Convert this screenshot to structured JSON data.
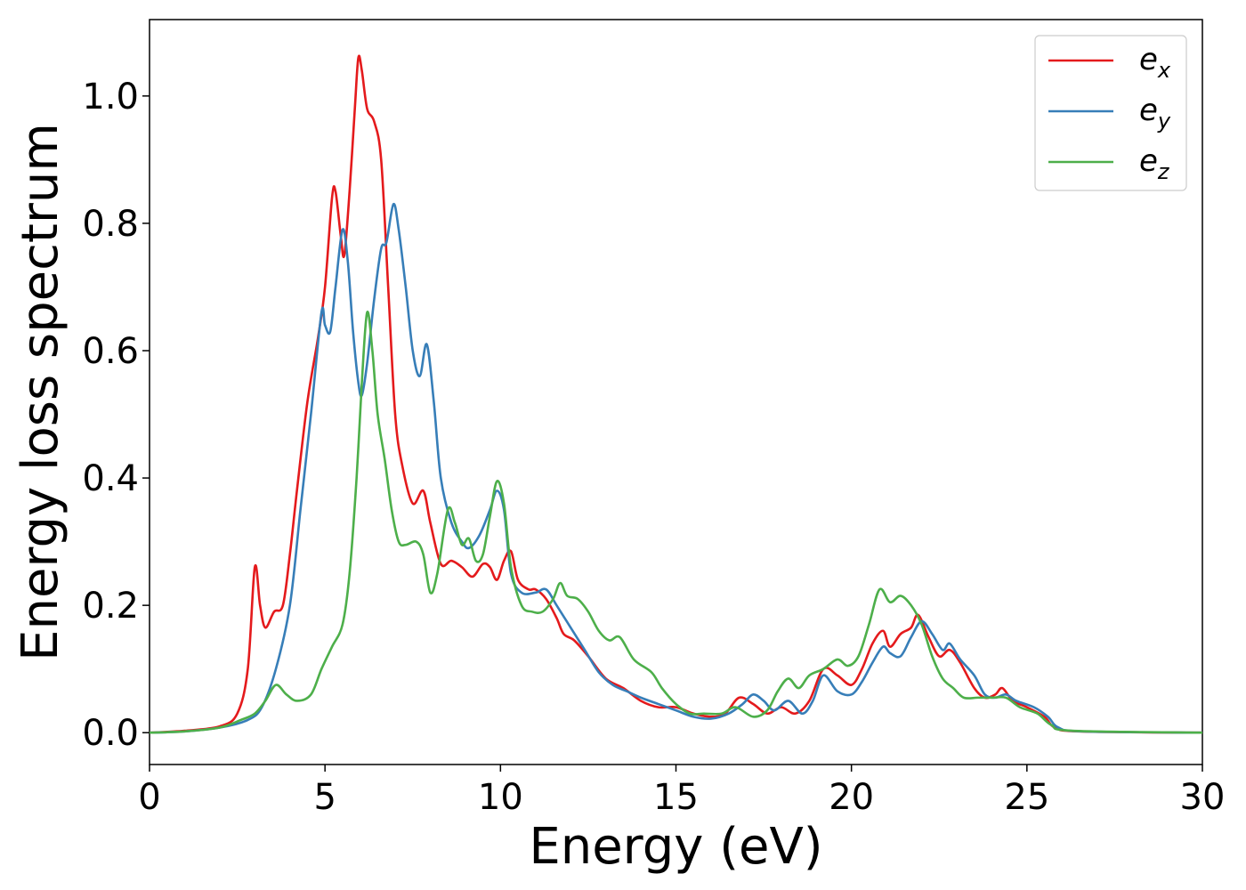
{
  "chart_data": {
    "type": "line",
    "xlabel": "Energy (eV)",
    "ylabel": "Energy loss spectrum",
    "xlim": [
      0,
      30
    ],
    "ylim": [
      -0.05,
      1.12
    ],
    "xticks": [
      0,
      5,
      10,
      15,
      20,
      25,
      30
    ],
    "xtick_labels": [
      "0",
      "5",
      "10",
      "15",
      "20",
      "25",
      "30"
    ],
    "yticks": [
      0.0,
      0.2,
      0.4,
      0.6,
      0.8,
      1.0
    ],
    "ytick_labels": [
      "0.0",
      "0.2",
      "0.4",
      "0.6",
      "0.8",
      "1.0"
    ],
    "grid": false,
    "legend_position": "top-right",
    "series": [
      {
        "name": "e_x",
        "label_base": "e",
        "label_sub": "x",
        "color": "#e41a1c",
        "points": [
          [
            0,
            0.0
          ],
          [
            1,
            0.003
          ],
          [
            2,
            0.01
          ],
          [
            2.5,
            0.03
          ],
          [
            2.8,
            0.1
          ],
          [
            3.0,
            0.26
          ],
          [
            3.15,
            0.2
          ],
          [
            3.3,
            0.165
          ],
          [
            3.55,
            0.19
          ],
          [
            3.8,
            0.2
          ],
          [
            4.0,
            0.28
          ],
          [
            4.2,
            0.38
          ],
          [
            4.5,
            0.52
          ],
          [
            4.8,
            0.62
          ],
          [
            5.0,
            0.7
          ],
          [
            5.2,
            0.84
          ],
          [
            5.3,
            0.85
          ],
          [
            5.45,
            0.78
          ],
          [
            5.55,
            0.75
          ],
          [
            5.7,
            0.85
          ],
          [
            5.85,
            0.98
          ],
          [
            5.95,
            1.06
          ],
          [
            6.05,
            1.04
          ],
          [
            6.2,
            0.98
          ],
          [
            6.4,
            0.96
          ],
          [
            6.6,
            0.9
          ],
          [
            6.8,
            0.7
          ],
          [
            7.0,
            0.5
          ],
          [
            7.2,
            0.42
          ],
          [
            7.5,
            0.36
          ],
          [
            7.8,
            0.38
          ],
          [
            8.0,
            0.33
          ],
          [
            8.3,
            0.265
          ],
          [
            8.6,
            0.27
          ],
          [
            8.9,
            0.26
          ],
          [
            9.2,
            0.245
          ],
          [
            9.5,
            0.265
          ],
          [
            9.7,
            0.26
          ],
          [
            9.9,
            0.24
          ],
          [
            10.1,
            0.27
          ],
          [
            10.3,
            0.285
          ],
          [
            10.5,
            0.24
          ],
          [
            10.8,
            0.225
          ],
          [
            11.0,
            0.225
          ],
          [
            11.3,
            0.21
          ],
          [
            11.6,
            0.18
          ],
          [
            11.8,
            0.155
          ],
          [
            12.1,
            0.145
          ],
          [
            12.5,
            0.12
          ],
          [
            13.0,
            0.085
          ],
          [
            13.5,
            0.07
          ],
          [
            14.0,
            0.05
          ],
          [
            14.5,
            0.04
          ],
          [
            15.0,
            0.04
          ],
          [
            15.5,
            0.03
          ],
          [
            16.0,
            0.025
          ],
          [
            16.4,
            0.03
          ],
          [
            16.8,
            0.055
          ],
          [
            17.2,
            0.045
          ],
          [
            17.6,
            0.03
          ],
          [
            18.0,
            0.04
          ],
          [
            18.4,
            0.03
          ],
          [
            18.8,
            0.05
          ],
          [
            19.2,
            0.1
          ],
          [
            19.6,
            0.09
          ],
          [
            20.0,
            0.075
          ],
          [
            20.3,
            0.1
          ],
          [
            20.6,
            0.14
          ],
          [
            20.9,
            0.16
          ],
          [
            21.1,
            0.135
          ],
          [
            21.4,
            0.155
          ],
          [
            21.7,
            0.165
          ],
          [
            21.9,
            0.185
          ],
          [
            22.2,
            0.15
          ],
          [
            22.5,
            0.12
          ],
          [
            22.8,
            0.13
          ],
          [
            23.1,
            0.11
          ],
          [
            23.5,
            0.07
          ],
          [
            23.8,
            0.055
          ],
          [
            24.1,
            0.06
          ],
          [
            24.3,
            0.07
          ],
          [
            24.6,
            0.05
          ],
          [
            25.0,
            0.04
          ],
          [
            25.5,
            0.025
          ],
          [
            25.8,
            0.008
          ],
          [
            26.5,
            0.002
          ],
          [
            30,
            0.0
          ]
        ]
      },
      {
        "name": "e_y",
        "label_base": "e",
        "label_sub": "y",
        "color": "#377eb8",
        "points": [
          [
            0,
            0.0
          ],
          [
            1,
            0.002
          ],
          [
            2,
            0.008
          ],
          [
            2.8,
            0.02
          ],
          [
            3.2,
            0.04
          ],
          [
            3.6,
            0.1
          ],
          [
            4.0,
            0.2
          ],
          [
            4.3,
            0.35
          ],
          [
            4.6,
            0.5
          ],
          [
            4.9,
            0.66
          ],
          [
            5.0,
            0.64
          ],
          [
            5.15,
            0.63
          ],
          [
            5.3,
            0.7
          ],
          [
            5.5,
            0.79
          ],
          [
            5.65,
            0.74
          ],
          [
            5.8,
            0.63
          ],
          [
            5.95,
            0.55
          ],
          [
            6.05,
            0.53
          ],
          [
            6.2,
            0.58
          ],
          [
            6.4,
            0.68
          ],
          [
            6.6,
            0.76
          ],
          [
            6.75,
            0.77
          ],
          [
            6.95,
            0.83
          ],
          [
            7.1,
            0.79
          ],
          [
            7.3,
            0.7
          ],
          [
            7.5,
            0.6
          ],
          [
            7.7,
            0.56
          ],
          [
            7.9,
            0.61
          ],
          [
            8.1,
            0.52
          ],
          [
            8.3,
            0.4
          ],
          [
            8.6,
            0.33
          ],
          [
            8.9,
            0.3
          ],
          [
            9.1,
            0.29
          ],
          [
            9.4,
            0.31
          ],
          [
            9.7,
            0.35
          ],
          [
            9.9,
            0.38
          ],
          [
            10.1,
            0.35
          ],
          [
            10.3,
            0.25
          ],
          [
            10.6,
            0.22
          ],
          [
            11.0,
            0.22
          ],
          [
            11.3,
            0.225
          ],
          [
            11.6,
            0.2
          ],
          [
            12.0,
            0.165
          ],
          [
            12.4,
            0.13
          ],
          [
            12.8,
            0.095
          ],
          [
            13.2,
            0.075
          ],
          [
            13.6,
            0.065
          ],
          [
            14.0,
            0.055
          ],
          [
            14.5,
            0.045
          ],
          [
            15.0,
            0.035
          ],
          [
            15.5,
            0.025
          ],
          [
            16.0,
            0.022
          ],
          [
            16.5,
            0.03
          ],
          [
            16.9,
            0.045
          ],
          [
            17.2,
            0.06
          ],
          [
            17.5,
            0.05
          ],
          [
            17.8,
            0.035
          ],
          [
            18.2,
            0.05
          ],
          [
            18.6,
            0.03
          ],
          [
            18.9,
            0.05
          ],
          [
            19.2,
            0.09
          ],
          [
            19.6,
            0.065
          ],
          [
            20.0,
            0.06
          ],
          [
            20.3,
            0.08
          ],
          [
            20.6,
            0.11
          ],
          [
            20.9,
            0.135
          ],
          [
            21.1,
            0.125
          ],
          [
            21.4,
            0.12
          ],
          [
            21.7,
            0.15
          ],
          [
            22.0,
            0.175
          ],
          [
            22.3,
            0.155
          ],
          [
            22.6,
            0.13
          ],
          [
            22.8,
            0.14
          ],
          [
            23.1,
            0.115
          ],
          [
            23.5,
            0.09
          ],
          [
            23.8,
            0.06
          ],
          [
            24.1,
            0.055
          ],
          [
            24.4,
            0.06
          ],
          [
            24.7,
            0.05
          ],
          [
            25.2,
            0.04
          ],
          [
            25.6,
            0.025
          ],
          [
            25.9,
            0.008
          ],
          [
            26.6,
            0.002
          ],
          [
            30,
            0.0
          ]
        ]
      },
      {
        "name": "e_z",
        "label_base": "e",
        "label_sub": "z",
        "color": "#4daf4a",
        "points": [
          [
            0,
            0.0
          ],
          [
            1,
            0.002
          ],
          [
            2,
            0.008
          ],
          [
            2.6,
            0.02
          ],
          [
            3.0,
            0.03
          ],
          [
            3.3,
            0.05
          ],
          [
            3.6,
            0.075
          ],
          [
            3.9,
            0.06
          ],
          [
            4.2,
            0.05
          ],
          [
            4.6,
            0.06
          ],
          [
            4.9,
            0.1
          ],
          [
            5.2,
            0.135
          ],
          [
            5.5,
            0.17
          ],
          [
            5.7,
            0.25
          ],
          [
            5.9,
            0.4
          ],
          [
            6.05,
            0.55
          ],
          [
            6.2,
            0.66
          ],
          [
            6.35,
            0.6
          ],
          [
            6.5,
            0.5
          ],
          [
            6.7,
            0.43
          ],
          [
            6.9,
            0.35
          ],
          [
            7.1,
            0.3
          ],
          [
            7.3,
            0.295
          ],
          [
            7.6,
            0.3
          ],
          [
            7.8,
            0.28
          ],
          [
            8.0,
            0.22
          ],
          [
            8.2,
            0.25
          ],
          [
            8.5,
            0.35
          ],
          [
            8.7,
            0.33
          ],
          [
            8.9,
            0.295
          ],
          [
            9.1,
            0.305
          ],
          [
            9.3,
            0.27
          ],
          [
            9.5,
            0.28
          ],
          [
            9.7,
            0.34
          ],
          [
            9.9,
            0.395
          ],
          [
            10.1,
            0.36
          ],
          [
            10.3,
            0.26
          ],
          [
            10.6,
            0.2
          ],
          [
            10.9,
            0.19
          ],
          [
            11.2,
            0.19
          ],
          [
            11.5,
            0.21
          ],
          [
            11.7,
            0.235
          ],
          [
            11.9,
            0.215
          ],
          [
            12.2,
            0.21
          ],
          [
            12.5,
            0.19
          ],
          [
            12.8,
            0.16
          ],
          [
            13.1,
            0.145
          ],
          [
            13.4,
            0.15
          ],
          [
            13.8,
            0.115
          ],
          [
            14.3,
            0.095
          ],
          [
            14.6,
            0.07
          ],
          [
            15.0,
            0.045
          ],
          [
            15.4,
            0.03
          ],
          [
            15.8,
            0.03
          ],
          [
            16.3,
            0.03
          ],
          [
            16.7,
            0.04
          ],
          [
            17.2,
            0.025
          ],
          [
            17.6,
            0.035
          ],
          [
            17.9,
            0.065
          ],
          [
            18.2,
            0.085
          ],
          [
            18.5,
            0.07
          ],
          [
            18.8,
            0.09
          ],
          [
            19.2,
            0.1
          ],
          [
            19.6,
            0.115
          ],
          [
            19.9,
            0.105
          ],
          [
            20.2,
            0.12
          ],
          [
            20.5,
            0.17
          ],
          [
            20.8,
            0.225
          ],
          [
            21.1,
            0.205
          ],
          [
            21.4,
            0.215
          ],
          [
            21.7,
            0.2
          ],
          [
            22.0,
            0.17
          ],
          [
            22.3,
            0.12
          ],
          [
            22.6,
            0.085
          ],
          [
            22.9,
            0.07
          ],
          [
            23.2,
            0.055
          ],
          [
            23.6,
            0.055
          ],
          [
            24.0,
            0.055
          ],
          [
            24.4,
            0.055
          ],
          [
            24.8,
            0.04
          ],
          [
            25.3,
            0.03
          ],
          [
            25.7,
            0.012
          ],
          [
            26.3,
            0.003
          ],
          [
            30,
            0.0
          ]
        ]
      }
    ]
  }
}
